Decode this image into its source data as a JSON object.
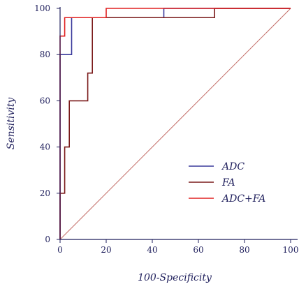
{
  "chart_data": {
    "type": "line",
    "title": "",
    "xlabel": "100-Specificity",
    "ylabel": "Sensitivity",
    "xlim": [
      0,
      100
    ],
    "ylim": [
      0,
      100
    ],
    "x_ticks": [
      0,
      20,
      40,
      60,
      80,
      100
    ],
    "y_ticks": [
      0,
      20,
      40,
      60,
      80,
      100
    ],
    "grid": false,
    "legend": "center-right",
    "reference_line": {
      "x": [
        0,
        100
      ],
      "y": [
        0,
        100
      ],
      "color": "#c4706a"
    },
    "series": [
      {
        "name": "ADC",
        "color": "#3a3a9c",
        "x": [
          0,
          0,
          0,
          5,
          5,
          20,
          20,
          45,
          45,
          100
        ],
        "y": [
          0,
          80,
          80,
          80,
          96,
          96,
          96,
          96,
          100,
          100
        ]
      },
      {
        "name": "FA",
        "color": "#7a1a1a",
        "x": [
          0,
          0,
          2,
          2,
          4,
          4,
          12,
          12,
          14,
          14,
          67,
          67,
          100
        ],
        "y": [
          0,
          20,
          20,
          40,
          40,
          60,
          60,
          72,
          72,
          96,
          96,
          100,
          100
        ]
      },
      {
        "name": "ADC+FA",
        "color": "#e02020",
        "x": [
          0,
          0,
          2,
          2,
          20,
          20,
          100
        ],
        "y": [
          0,
          88,
          88,
          96,
          96,
          100,
          100
        ]
      }
    ]
  }
}
